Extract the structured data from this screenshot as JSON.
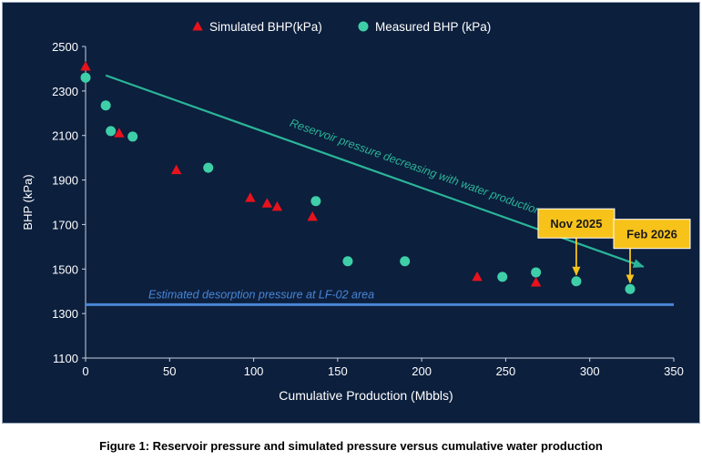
{
  "chart_data": {
    "type": "scatter",
    "title": "",
    "xlabel": "Cumulative Production (Mbbls)",
    "ylabel": "BHP (kPa)",
    "xlim": [
      0,
      350
    ],
    "ylim": [
      1100,
      2500
    ],
    "x_ticks": [
      0,
      50,
      100,
      150,
      200,
      250,
      300,
      350
    ],
    "y_ticks": [
      1100,
      1300,
      1500,
      1700,
      1900,
      2100,
      2300,
      2500
    ],
    "legend_position": "top",
    "series": [
      {
        "name": "Simulated BHP(kPa)",
        "marker": "triangle",
        "color": "#e8121c",
        "points": [
          [
            0,
            2410
          ],
          [
            20,
            2110
          ],
          [
            54,
            1945
          ],
          [
            98,
            1820
          ],
          [
            108,
            1795
          ],
          [
            114,
            1780
          ],
          [
            135,
            1735
          ],
          [
            233,
            1465
          ],
          [
            268,
            1440
          ]
        ]
      },
      {
        "name": "Measured BHP (kPa)",
        "marker": "circle",
        "color": "#3ecfa8",
        "points": [
          [
            0,
            2360
          ],
          [
            12,
            2235
          ],
          [
            15,
            2120
          ],
          [
            28,
            2095
          ],
          [
            73,
            1955
          ],
          [
            137,
            1805
          ],
          [
            156,
            1535
          ],
          [
            190,
            1535
          ],
          [
            248,
            1465
          ],
          [
            268,
            1485
          ],
          [
            292,
            1445
          ],
          [
            324,
            1410
          ]
        ]
      }
    ],
    "trend_line": {
      "label": "Reservoir pressure decreasing with water production",
      "from": [
        12,
        2370
      ],
      "to": [
        332,
        1510
      ],
      "color": "#2bb598"
    },
    "reference_line": {
      "label": "Estimated desorption pressure at LF-02 area",
      "y": 1340,
      "color": "#4a86d6"
    },
    "callouts": [
      {
        "label": "Nov 2025",
        "point": [
          292,
          1445
        ],
        "box_center": [
          292,
          1705
        ]
      },
      {
        "label": "Feb 2026",
        "point": [
          324,
          1410
        ],
        "box_center": [
          337,
          1658
        ]
      }
    ],
    "colors": {
      "background": "#0c1f3d",
      "text": "#ffffff",
      "callout_fill": "#f7c21a",
      "callout_text": "#1a1a1a"
    }
  },
  "caption": "Figure 1: Reservoir pressure and simulated pressure versus cumulative water production"
}
